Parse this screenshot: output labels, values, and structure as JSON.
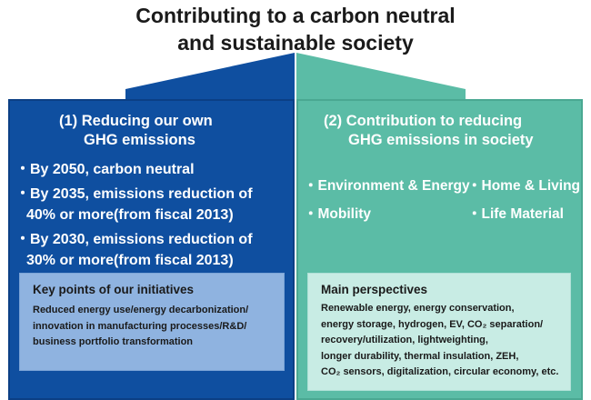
{
  "title": {
    "line1": "Contributing to a carbon neutral",
    "line2": "and sustainable society"
  },
  "colors": {
    "left_panel": "#0f4fa0",
    "right_panel": "#5bbca6",
    "left_box": "#8fb3e0",
    "right_box": "#c8ece4"
  },
  "left": {
    "heading": [
      "(1) Reducing our own",
      "GHG emissions"
    ],
    "bullets": [
      [
        "・By 2050, carbon neutral"
      ],
      [
        "・By 2035, emissions reduction of",
        "40% or more(from fiscal 2013)"
      ],
      [
        "・By 2030, emissions reduction of",
        "30% or more(from fiscal 2013)"
      ]
    ],
    "box": {
      "title": "Key points of our initiatives",
      "body": [
        "Reduced energy use/energy decarbonization/",
        "innovation in manufacturing processes/R&D/",
        "business portfolio transformation"
      ]
    }
  },
  "right": {
    "heading": [
      "(2) Contribution to reducing",
      "GHG emissions in society"
    ],
    "fields": [
      "・Environment & Energy",
      "・Home & Living",
      "・Mobility",
      "・Life Material"
    ],
    "box": {
      "title": "Main perspectives",
      "body": [
        "Renewable energy, energy conservation,",
        "energy storage, hydrogen, EV, CO₂ separation/",
        "recovery/utilization, lightweighting,",
        "longer durability, thermal insulation, ZEH,",
        "CO₂ sensors, digitalization, circular economy, etc."
      ]
    }
  }
}
